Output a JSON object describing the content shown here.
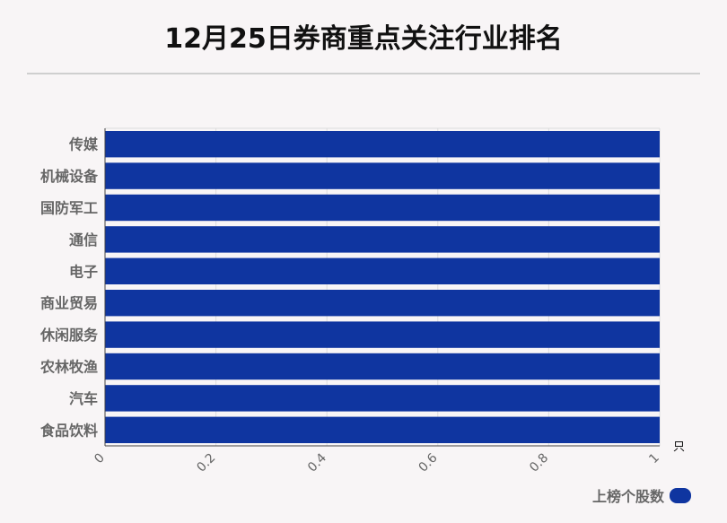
{
  "header": {
    "title": "12月25日券商重点关注行业排名"
  },
  "colors": {
    "bar": "#0f35a0",
    "grid": "#dddddd",
    "axis": "#444444",
    "label": "#666666"
  },
  "chart_data": {
    "type": "bar",
    "orientation": "horizontal",
    "categories": [
      "传媒",
      "机械设备",
      "国防军工",
      "通信",
      "电子",
      "商业贸易",
      "休闲服务",
      "农林牧渔",
      "汽车",
      "食品饮料"
    ],
    "series": [
      {
        "name": "上榜个股数",
        "values": [
          1,
          1,
          1,
          1,
          1,
          1,
          1,
          1,
          1,
          1
        ]
      }
    ],
    "xlim": [
      0,
      1
    ],
    "x_ticks": [
      "0",
      "0.2",
      "0.4",
      "0.6",
      "0.8",
      "1"
    ],
    "x_unit": "只",
    "legend_position": "bottom-right",
    "grid": true
  }
}
